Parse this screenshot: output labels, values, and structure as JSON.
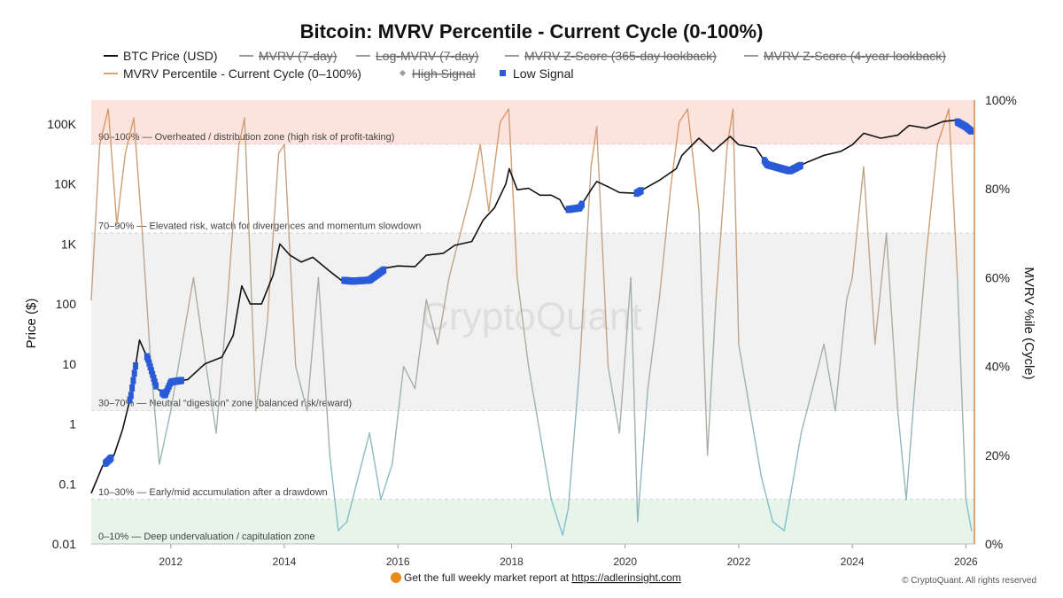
{
  "chart_data": {
    "type": "line",
    "title": "Bitcoin: MVRV Percentile - Current Cycle (0-100%)",
    "ylabel_left": "Price ($)",
    "ylabel_right": "MVRV %ile (Cycle)",
    "y_left_scale": "log",
    "y_left_range": [
      0.01,
      250000
    ],
    "y_left_ticks": [
      {
        "v": 0.01,
        "label": "0.01"
      },
      {
        "v": 0.1,
        "label": "0.1"
      },
      {
        "v": 1,
        "label": "1"
      },
      {
        "v": 10,
        "label": "10"
      },
      {
        "v": 100,
        "label": "100"
      },
      {
        "v": 1000,
        "label": "1K"
      },
      {
        "v": 10000,
        "label": "10K"
      },
      {
        "v": 100000,
        "label": "100K"
      }
    ],
    "y_right_range": [
      0,
      100
    ],
    "y_right_ticks": [
      {
        "v": 0,
        "label": "0%"
      },
      {
        "v": 20,
        "label": "20%"
      },
      {
        "v": 40,
        "label": "40%"
      },
      {
        "v": 60,
        "label": "60%"
      },
      {
        "v": 80,
        "label": "80%"
      },
      {
        "v": 100,
        "label": "100%"
      }
    ],
    "x_range": [
      2010.6,
      2026.15
    ],
    "x_ticks": [
      {
        "v": 2012,
        "label": "2012"
      },
      {
        "v": 2014,
        "label": "2014"
      },
      {
        "v": 2016,
        "label": "2016"
      },
      {
        "v": 2018,
        "label": "2018"
      },
      {
        "v": 2020,
        "label": "2020"
      },
      {
        "v": 2022,
        "label": "2022"
      },
      {
        "v": 2024,
        "label": "2024"
      },
      {
        "v": 2026,
        "label": "2026"
      }
    ],
    "grid": false,
    "legend_placement": "top",
    "legend": [
      {
        "name": "BTC Price (USD)",
        "symbol": "line",
        "color": "#111111",
        "hidden": false
      },
      {
        "name": "MVRV (7-day)",
        "symbol": "line",
        "color": "#999999",
        "hidden": true
      },
      {
        "name": "Log-MVRV (7-day)",
        "symbol": "line",
        "color": "#999999",
        "hidden": true
      },
      {
        "name": "MVRV Z-Score (365-day lookback)",
        "symbol": "line",
        "color": "#999999",
        "hidden": true
      },
      {
        "name": "MVRV Z-Score (4-year lookback)",
        "symbol": "line",
        "color": "#999999",
        "hidden": true
      },
      {
        "name": "MVRV Percentile - Current Cycle (0–100%)",
        "symbol": "line",
        "color": "#d9a476",
        "hidden": false
      },
      {
        "name": "High Signal",
        "symbol": "diamond",
        "color": "#999999",
        "hidden": true
      },
      {
        "name": "Low Signal",
        "symbol": "square",
        "color": "#2a5bd7",
        "hidden": false
      }
    ],
    "zones": [
      {
        "from": 90,
        "to": 100,
        "color": "#fde3dd",
        "label": "90–100% — Overheated / distribution zone (high risk of profit-taking)"
      },
      {
        "from": 70,
        "to": 90,
        "color": "#ffffff",
        "label": "70–90% — Elevated risk, watch for divergences and momentum slowdown"
      },
      {
        "from": 30,
        "to": 70,
        "color": "#f1f1f1",
        "label": "30–70% — Neutral “digestion” zone (balanced risk/reward)"
      },
      {
        "from": 10,
        "to": 30,
        "color": "#ffffff",
        "label": "10–30% — Early/mid accumulation after a drawdown"
      },
      {
        "from": 0,
        "to": 10,
        "color": "#e6f4ea",
        "label": "0–10% — Deep undervaluation / capitulation zone"
      }
    ],
    "series": [
      {
        "name": "BTC Price (USD)",
        "axis": "left",
        "color": "#111111",
        "x": [
          2010.6,
          2010.8,
          2011.0,
          2011.15,
          2011.3,
          2011.45,
          2011.6,
          2011.75,
          2011.9,
          2012.0,
          2012.3,
          2012.6,
          2012.9,
          2013.1,
          2013.25,
          2013.4,
          2013.6,
          2013.8,
          2013.92,
          2014.1,
          2014.3,
          2014.5,
          2014.8,
          2015.0,
          2015.2,
          2015.5,
          2015.8,
          2016.0,
          2016.3,
          2016.5,
          2016.8,
          2017.0,
          2017.3,
          2017.5,
          2017.7,
          2017.9,
          2017.96,
          2018.1,
          2018.3,
          2018.5,
          2018.7,
          2018.85,
          2018.95,
          2019.2,
          2019.4,
          2019.5,
          2019.7,
          2019.9,
          2020.2,
          2020.4,
          2020.6,
          2020.9,
          2021.0,
          2021.3,
          2021.55,
          2021.85,
          2022.0,
          2022.3,
          2022.5,
          2022.9,
          2023.2,
          2023.5,
          2023.8,
          2024.0,
          2024.2,
          2024.5,
          2024.8,
          2025.0,
          2025.3,
          2025.6,
          2025.8,
          2026.0,
          2026.1
        ],
        "y": [
          0.07,
          0.2,
          0.3,
          0.8,
          3,
          25,
          12,
          4,
          3,
          5,
          5.5,
          10,
          13,
          30,
          200,
          100,
          100,
          300,
          1000,
          650,
          500,
          600,
          350,
          250,
          240,
          250,
          400,
          430,
          420,
          650,
          700,
          950,
          1100,
          2500,
          4000,
          10000,
          18000,
          8000,
          8500,
          6500,
          6500,
          5500,
          3700,
          4000,
          8000,
          11000,
          9000,
          7200,
          7000,
          9000,
          11500,
          18000,
          30000,
          58000,
          35000,
          62000,
          45000,
          40000,
          21000,
          16500,
          23000,
          30000,
          35000,
          45000,
          70000,
          58000,
          65000,
          95000,
          85000,
          110000,
          115000,
          90000,
          75000
        ]
      },
      {
        "name": "MVRV Percentile - Current Cycle (0–100%)",
        "axis": "right",
        "color": "#d9a476",
        "low_color": "#7cc2d0",
        "x": [
          2010.6,
          2010.75,
          2010.9,
          2011.05,
          2011.2,
          2011.35,
          2011.5,
          2011.65,
          2011.8,
          2012.0,
          2012.2,
          2012.4,
          2012.6,
          2012.8,
          2013.0,
          2013.2,
          2013.3,
          2013.5,
          2013.7,
          2013.9,
          2014.0,
          2014.2,
          2014.4,
          2014.6,
          2014.8,
          2014.95,
          2015.1,
          2015.3,
          2015.5,
          2015.7,
          2015.9,
          2016.1,
          2016.3,
          2016.5,
          2016.7,
          2016.9,
          2017.1,
          2017.3,
          2017.45,
          2017.6,
          2017.8,
          2017.95,
          2018.1,
          2018.3,
          2018.5,
          2018.7,
          2018.9,
          2019.0,
          2019.2,
          2019.4,
          2019.5,
          2019.7,
          2019.9,
          2020.1,
          2020.22,
          2020.4,
          2020.6,
          2020.8,
          2020.95,
          2021.1,
          2021.3,
          2021.45,
          2021.6,
          2021.8,
          2021.9,
          2022.0,
          2022.2,
          2022.4,
          2022.6,
          2022.8,
          2022.9,
          2023.1,
          2023.3,
          2023.5,
          2023.7,
          2023.9,
          2024.0,
          2024.2,
          2024.4,
          2024.6,
          2024.8,
          2024.95,
          2025.1,
          2025.3,
          2025.5,
          2025.7,
          2025.85,
          2026.0,
          2026.1
        ],
        "y": [
          55,
          90,
          98,
          72,
          88,
          96,
          70,
          40,
          18,
          30,
          45,
          60,
          42,
          25,
          55,
          90,
          96,
          30,
          50,
          88,
          90,
          40,
          30,
          60,
          20,
          3,
          5,
          15,
          25,
          10,
          18,
          40,
          35,
          55,
          45,
          60,
          70,
          80,
          90,
          75,
          95,
          98,
          60,
          40,
          25,
          10,
          2,
          8,
          40,
          85,
          94,
          40,
          25,
          60,
          5,
          35,
          55,
          80,
          95,
          98,
          75,
          20,
          55,
          90,
          98,
          45,
          30,
          15,
          5,
          3,
          10,
          25,
          35,
          45,
          30,
          55,
          60,
          85,
          45,
          70,
          30,
          10,
          35,
          65,
          90,
          98,
          60,
          10,
          3
        ]
      }
    ],
    "low_signal_periods": [
      [
        2010.85,
        2010.95
      ],
      [
        2011.28,
        2011.38
      ],
      [
        2011.58,
        2011.75
      ],
      [
        2011.85,
        2012.2
      ],
      [
        2015.05,
        2015.75
      ],
      [
        2019.0,
        2019.25
      ],
      [
        2020.2,
        2020.28
      ],
      [
        2022.45,
        2023.1
      ],
      [
        2025.85,
        2026.1
      ]
    ],
    "watermark": "CryptoQuant",
    "footer_text": "Get the full weekly market report at ",
    "footer_link": "https://adlerinsight.com",
    "copyright": "© CryptoQuant. All rights reserved"
  }
}
